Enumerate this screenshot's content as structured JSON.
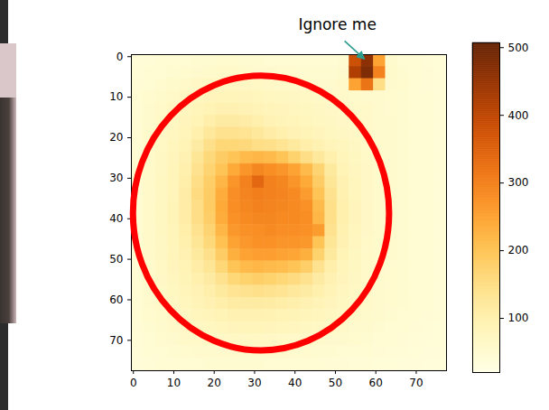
{
  "chart_data": {
    "type": "heatmap",
    "x": [
      1,
      4,
      7,
      10,
      13,
      16,
      19,
      22,
      25,
      28,
      31,
      34,
      37,
      40,
      43,
      46,
      49,
      52,
      55,
      58,
      61,
      64,
      67,
      70,
      73,
      76
    ],
    "y": [
      1,
      4,
      7,
      10,
      13,
      16,
      19,
      22,
      25,
      28,
      31,
      34,
      37,
      40,
      43,
      46,
      49,
      52,
      55,
      58,
      61,
      64,
      67,
      70,
      73,
      76
    ],
    "z": [
      [
        40,
        42,
        45,
        45,
        48,
        50,
        50,
        52,
        52,
        50,
        50,
        48,
        48,
        48,
        46,
        46,
        46,
        50,
        380,
        460,
        250,
        55,
        48,
        45,
        42,
        40
      ],
      [
        42,
        45,
        48,
        50,
        52,
        55,
        58,
        60,
        60,
        58,
        56,
        55,
        52,
        52,
        50,
        50,
        50,
        55,
        420,
        480,
        300,
        58,
        50,
        46,
        44,
        40
      ],
      [
        44,
        48,
        52,
        58,
        62,
        66,
        70,
        72,
        72,
        70,
        68,
        66,
        62,
        60,
        58,
        56,
        55,
        60,
        250,
        320,
        150,
        56,
        52,
        48,
        44,
        42
      ],
      [
        45,
        52,
        58,
        65,
        70,
        75,
        80,
        82,
        82,
        80,
        78,
        75,
        72,
        70,
        68,
        65,
        62,
        60,
        58,
        56,
        55,
        52,
        50,
        48,
        45,
        42
      ],
      [
        46,
        55,
        62,
        70,
        76,
        82,
        90,
        95,
        95,
        92,
        88,
        84,
        80,
        76,
        74,
        70,
        66,
        64,
        62,
        60,
        56,
        52,
        50,
        48,
        45,
        42
      ],
      [
        48,
        56,
        65,
        72,
        80,
        90,
        105,
        115,
        115,
        110,
        100,
        92,
        86,
        82,
        78,
        74,
        70,
        66,
        64,
        60,
        56,
        54,
        50,
        48,
        45,
        42
      ],
      [
        48,
        58,
        66,
        75,
        85,
        100,
        125,
        140,
        140,
        135,
        125,
        110,
        100,
        92,
        86,
        80,
        74,
        70,
        66,
        60,
        56,
        54,
        50,
        48,
        45,
        42
      ],
      [
        48,
        58,
        68,
        78,
        90,
        115,
        145,
        165,
        165,
        160,
        150,
        145,
        135,
        120,
        105,
        95,
        85,
        78,
        70,
        62,
        58,
        54,
        50,
        48,
        45,
        42
      ],
      [
        48,
        60,
        70,
        80,
        95,
        130,
        160,
        185,
        200,
        215,
        220,
        215,
        200,
        175,
        150,
        125,
        100,
        85,
        74,
        64,
        58,
        54,
        50,
        48,
        45,
        42
      ],
      [
        50,
        60,
        70,
        82,
        100,
        140,
        170,
        200,
        240,
        270,
        290,
        280,
        270,
        250,
        215,
        170,
        120,
        90,
        76,
        66,
        58,
        54,
        50,
        48,
        45,
        42
      ],
      [
        50,
        60,
        72,
        84,
        105,
        150,
        180,
        220,
        270,
        300,
        340,
        300,
        290,
        270,
        240,
        185,
        130,
        95,
        78,
        66,
        58,
        54,
        50,
        48,
        45,
        42
      ],
      [
        50,
        62,
        72,
        85,
        110,
        155,
        185,
        235,
        280,
        295,
        305,
        300,
        295,
        285,
        260,
        200,
        140,
        98,
        78,
        66,
        58,
        54,
        50,
        48,
        45,
        42
      ],
      [
        50,
        62,
        72,
        86,
        110,
        150,
        185,
        240,
        280,
        290,
        300,
        295,
        290,
        285,
        275,
        215,
        145,
        100,
        80,
        66,
        58,
        54,
        50,
        48,
        45,
        42
      ],
      [
        50,
        62,
        72,
        86,
        110,
        150,
        180,
        235,
        275,
        285,
        290,
        290,
        285,
        285,
        280,
        220,
        145,
        100,
        80,
        66,
        58,
        54,
        50,
        48,
        45,
        42
      ],
      [
        50,
        60,
        72,
        85,
        105,
        140,
        170,
        220,
        265,
        275,
        280,
        285,
        280,
        280,
        275,
        260,
        140,
        98,
        78,
        66,
        58,
        54,
        50,
        48,
        45,
        42
      ],
      [
        50,
        60,
        70,
        84,
        100,
        130,
        160,
        205,
        250,
        265,
        275,
        275,
        270,
        270,
        265,
        200,
        130,
        95,
        76,
        64,
        58,
        54,
        50,
        48,
        45,
        42
      ],
      [
        48,
        60,
        70,
        82,
        95,
        120,
        145,
        185,
        230,
        250,
        255,
        255,
        250,
        245,
        230,
        175,
        120,
        90,
        74,
        64,
        58,
        54,
        50,
        48,
        45,
        42
      ],
      [
        48,
        58,
        68,
        80,
        90,
        110,
        130,
        165,
        200,
        215,
        220,
        215,
        210,
        200,
        180,
        140,
        105,
        85,
        72,
        62,
        56,
        52,
        50,
        48,
        45,
        42
      ],
      [
        48,
        58,
        66,
        76,
        86,
        100,
        115,
        140,
        165,
        175,
        180,
        175,
        165,
        155,
        140,
        115,
        95,
        80,
        70,
        62,
        56,
        52,
        50,
        48,
        45,
        42
      ],
      [
        46,
        56,
        64,
        74,
        82,
        92,
        105,
        120,
        135,
        140,
        145,
        140,
        135,
        125,
        115,
        100,
        88,
        76,
        68,
        60,
        55,
        52,
        50,
        48,
        45,
        42
      ],
      [
        46,
        54,
        62,
        70,
        78,
        86,
        95,
        105,
        112,
        115,
        115,
        112,
        108,
        102,
        95,
        88,
        80,
        72,
        66,
        60,
        55,
        52,
        50,
        48,
        45,
        42
      ],
      [
        45,
        52,
        58,
        66,
        72,
        78,
        85,
        90,
        95,
        96,
        96,
        94,
        90,
        86,
        82,
        78,
        72,
        68,
        62,
        58,
        54,
        50,
        48,
        46,
        44,
        42
      ],
      [
        44,
        50,
        55,
        60,
        66,
        70,
        74,
        78,
        80,
        82,
        82,
        80,
        78,
        76,
        72,
        68,
        64,
        60,
        56,
        54,
        50,
        48,
        46,
        44,
        42,
        40
      ],
      [
        42,
        48,
        52,
        56,
        60,
        62,
        65,
        66,
        68,
        68,
        68,
        66,
        65,
        62,
        60,
        58,
        56,
        54,
        52,
        50,
        48,
        46,
        44,
        42,
        40,
        40
      ],
      [
        40,
        45,
        48,
        50,
        52,
        54,
        55,
        56,
        56,
        56,
        56,
        55,
        54,
        52,
        52,
        50,
        50,
        48,
        46,
        45,
        44,
        42,
        42,
        40,
        38,
        38
      ],
      [
        38,
        42,
        45,
        46,
        48,
        48,
        50,
        50,
        50,
        50,
        50,
        48,
        48,
        46,
        46,
        45,
        44,
        44,
        42,
        42,
        40,
        40,
        38,
        38,
        36,
        36
      ]
    ],
    "xlim": [
      -0.5,
      77.5
    ],
    "ylim": [
      77.5,
      -0.5
    ],
    "xticks": [
      0,
      10,
      20,
      30,
      40,
      50,
      60,
      70
    ],
    "yticks": [
      0,
      10,
      20,
      30,
      40,
      50,
      60,
      70
    ],
    "colorbar": {
      "range": [
        20,
        507
      ],
      "ticks": [
        100,
        200,
        300,
        400,
        500
      ],
      "color": "YlOrBr"
    },
    "annotations": [
      {
        "text": "Ignore me",
        "x": 57.3,
        "y": 0.7,
        "color": "#2a9d8f"
      }
    ],
    "highlight": {
      "shape": "ellipse",
      "x": 31.7,
      "y": 38.7,
      "rx": 31.7,
      "ry": 33.9,
      "color": "#ff0000"
    }
  }
}
